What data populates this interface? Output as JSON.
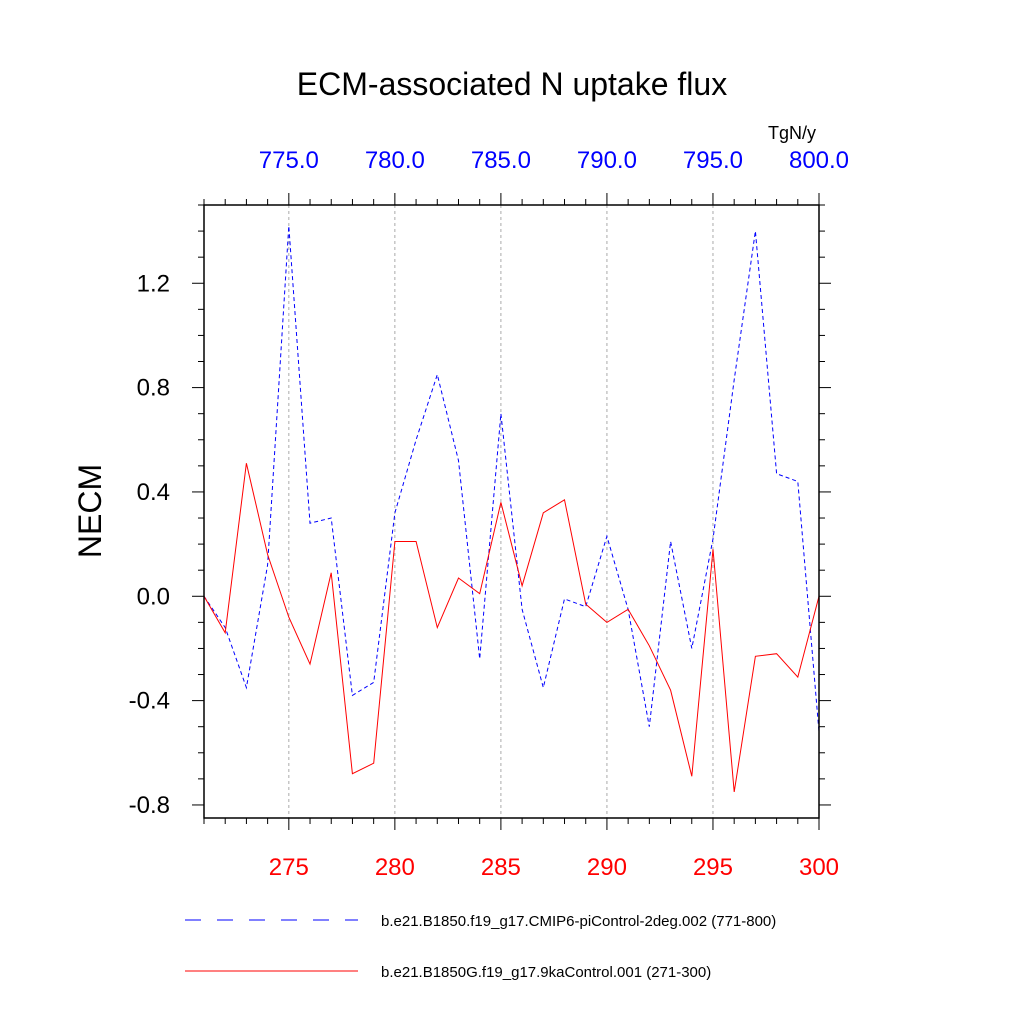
{
  "chart_data": {
    "type": "line",
    "title": "ECM-associated N uptake flux",
    "ylabel": "NECM",
    "top_axis_units": "TgN/y",
    "ylim": [
      -0.85,
      1.5
    ],
    "yticks": [
      -0.8,
      -0.4,
      0.0,
      0.4,
      0.8,
      1.2
    ],
    "ytick_labels": [
      "-0.8",
      "-0.4",
      "0.0",
      "0.4",
      "0.8",
      "1.2"
    ],
    "bottom_axis": {
      "color": "#ff0000",
      "range": [
        271,
        300
      ],
      "ticks": [
        275,
        280,
        285,
        290,
        295,
        300
      ],
      "tick_labels": [
        "275",
        "280",
        "285",
        "290",
        "295",
        "300"
      ]
    },
    "top_axis": {
      "color": "#0000ff",
      "range": [
        771,
        800
      ],
      "ticks": [
        775,
        780,
        785,
        790,
        795,
        800
      ],
      "tick_labels": [
        "775.0",
        "780.0",
        "785.0",
        "790.0",
        "795.0",
        "800.0"
      ]
    },
    "grid": "vertical dashed at major ticks",
    "legend_position": "bottom",
    "series": [
      {
        "name": "b.e21.B1850.f19_g17.CMIP6-piControl-2deg.002 (771-800)",
        "color": "#0000ff",
        "style": "dashed",
        "axis": "top",
        "x": [
          771,
          772,
          773,
          774,
          775,
          776,
          777,
          778,
          779,
          780,
          781,
          782,
          783,
          784,
          785,
          786,
          787,
          788,
          789,
          790,
          791,
          792,
          793,
          794,
          795,
          796,
          797,
          798,
          799,
          800
        ],
        "values": [
          0.0,
          -0.12,
          -0.35,
          0.12,
          1.42,
          0.28,
          0.3,
          -0.38,
          -0.33,
          0.32,
          0.6,
          0.85,
          0.52,
          -0.24,
          0.7,
          -0.05,
          -0.35,
          -0.01,
          -0.04,
          0.23,
          -0.05,
          -0.5,
          0.21,
          -0.2,
          0.22,
          0.83,
          1.4,
          0.47,
          0.44,
          -0.52
        ]
      },
      {
        "name": "b.e21.B1850G.f19_g17.9kaControl.001 (271-300)",
        "color": "#ff0000",
        "style": "solid",
        "axis": "bottom",
        "x": [
          271,
          272,
          273,
          274,
          275,
          276,
          277,
          278,
          279,
          280,
          281,
          282,
          283,
          284,
          285,
          286,
          287,
          288,
          289,
          290,
          291,
          292,
          293,
          294,
          295,
          296,
          297,
          298,
          299,
          300
        ],
        "values": [
          0.0,
          -0.14,
          0.51,
          0.16,
          -0.08,
          -0.26,
          0.09,
          -0.68,
          -0.64,
          0.21,
          0.21,
          -0.12,
          0.07,
          0.01,
          0.36,
          0.04,
          0.32,
          0.37,
          -0.03,
          -0.1,
          -0.05,
          -0.19,
          -0.36,
          -0.69,
          0.18,
          -0.75,
          -0.23,
          -0.22,
          -0.31,
          0.0
        ]
      }
    ]
  }
}
